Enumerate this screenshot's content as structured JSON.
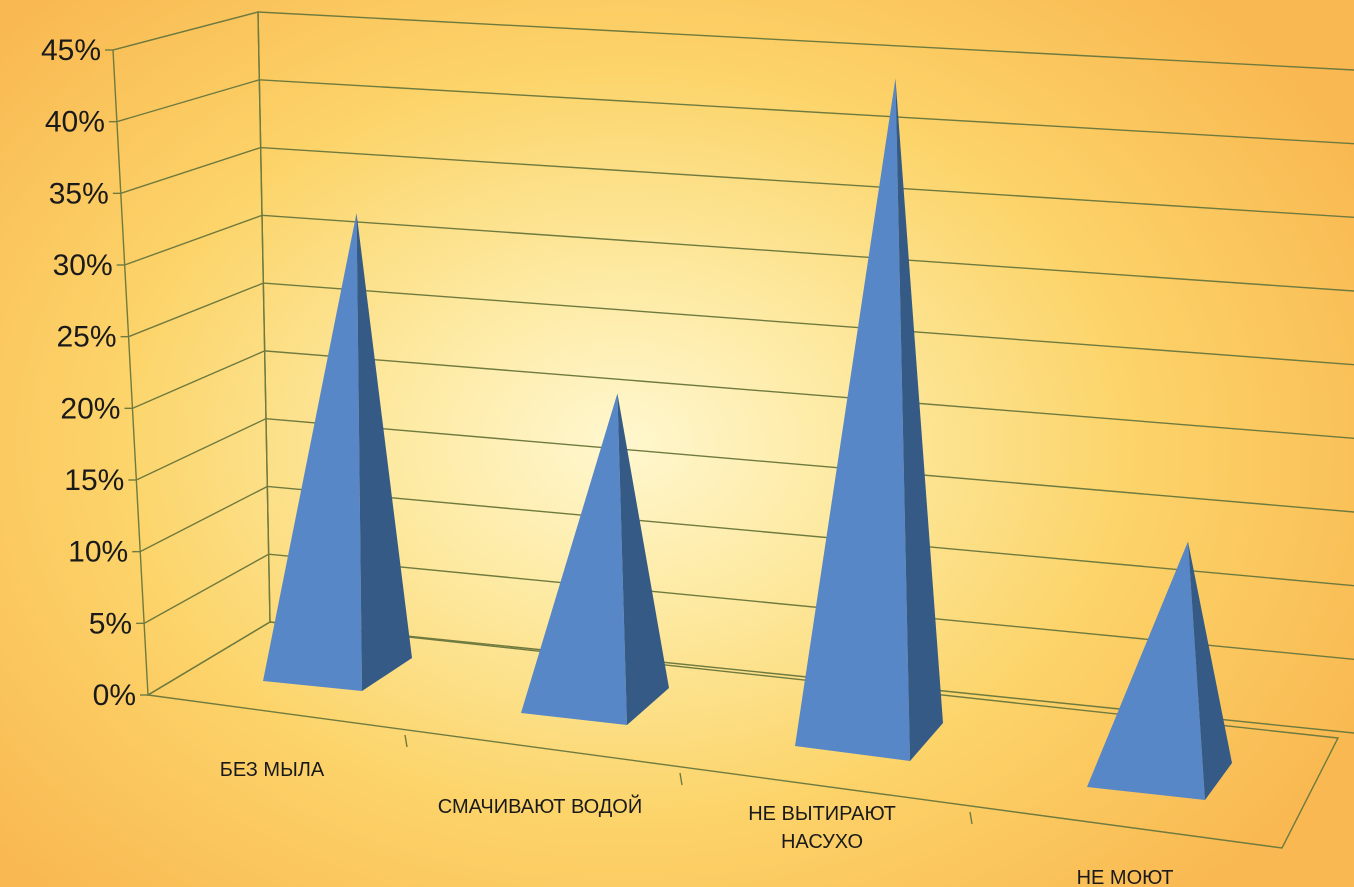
{
  "chart_data": {
    "type": "bar",
    "style": "3d-pyramid",
    "categories": [
      "БЕЗ МЫЛА",
      "СМАЧИВАЮТ ВОДОЙ",
      "НЕ ВЫТИРАЮТ НАСУХО",
      "НЕ МОЮТ"
    ],
    "category_label_lines": [
      [
        "БЕЗ МЫЛА"
      ],
      [
        "СМАЧИВАЮТ ВОДОЙ"
      ],
      [
        "НЕ ВЫТИРАЮТ",
        "НАСУХО"
      ],
      [
        "НЕ МОЮТ"
      ]
    ],
    "values": [
      32,
      22,
      46,
      17
    ],
    "y_ticks": [
      "0%",
      "5%",
      "10%",
      "15%",
      "20%",
      "25%",
      "30%",
      "35%",
      "40%",
      "45%"
    ],
    "ylim": [
      0,
      45
    ],
    "y_unit": "%",
    "grid": true,
    "legend": "none",
    "title": "",
    "xlabel": "",
    "ylabel": "",
    "colors": {
      "front_face": "#5787c7",
      "side_face": "#355a86",
      "gridline": "#6f7a3e"
    }
  }
}
